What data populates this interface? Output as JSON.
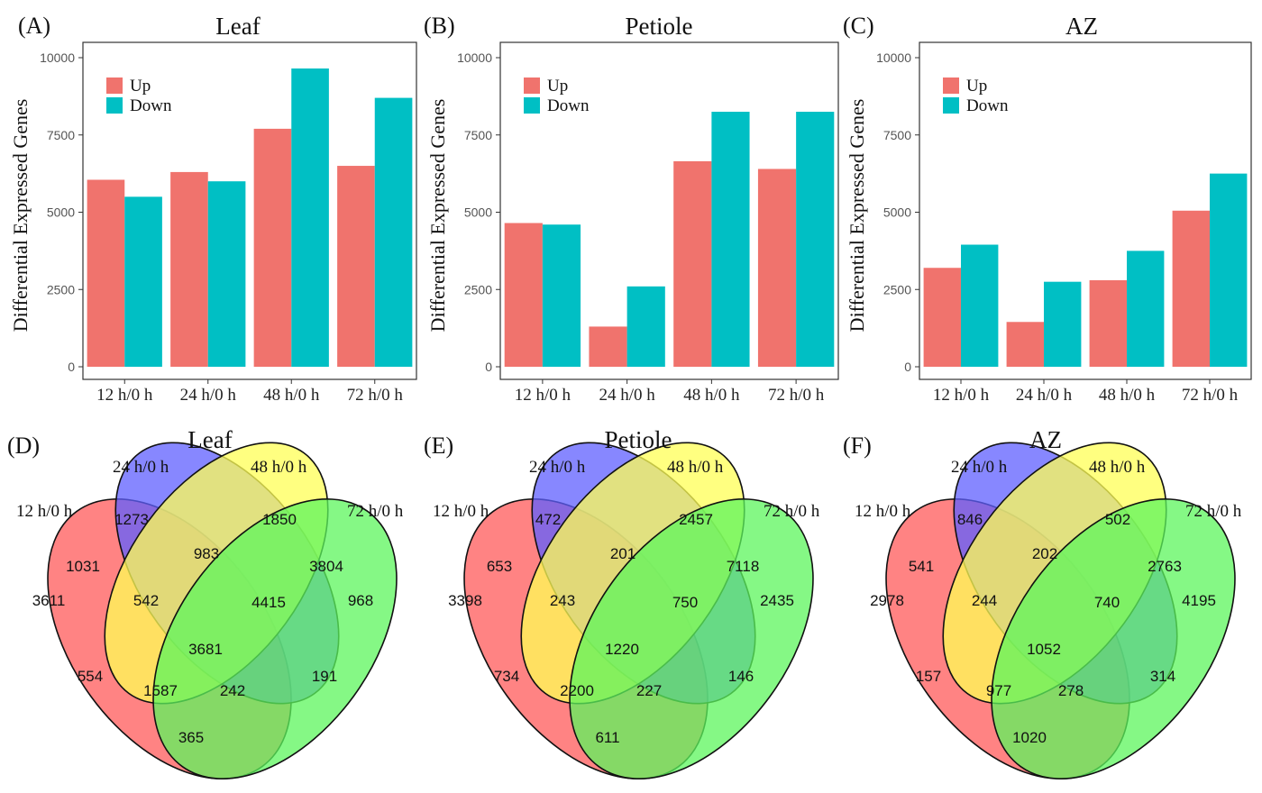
{
  "colors": {
    "up": "#f0736d",
    "down": "#00bfc4",
    "venn": [
      "#ff5a5a",
      "#5f5fff",
      "#ffff55",
      "#5cf55c"
    ]
  },
  "chart_data": [
    {
      "type": "bar",
      "panel_label": "(A)",
      "title": "Leaf",
      "xlabel": "",
      "ylabel": "Differential Expressed Genes",
      "ylim": [
        0,
        10500
      ],
      "yticks": [
        "0",
        "2500",
        "5000",
        "7500",
        "10000"
      ],
      "grid": false,
      "legend_placement": "top-left",
      "categories": [
        "12 h/0 h",
        "24 h/0 h",
        "48 h/0 h",
        "72 h/0 h"
      ],
      "series": [
        {
          "name": "Up",
          "values": [
            6050,
            6300,
            7700,
            6500
          ]
        },
        {
          "name": "Down",
          "values": [
            5500,
            6000,
            9650,
            8700
          ]
        }
      ]
    },
    {
      "type": "bar",
      "panel_label": "(B)",
      "title": "Petiole",
      "xlabel": "",
      "ylabel": "Differential Expressed Genes",
      "ylim": [
        0,
        10500
      ],
      "yticks": [
        "0",
        "2500",
        "5000",
        "7500",
        "10000"
      ],
      "grid": false,
      "legend_placement": "top-left",
      "categories": [
        "12 h/0 h",
        "24 h/0 h",
        "48 h/0 h",
        "72 h/0 h"
      ],
      "series": [
        {
          "name": "Up",
          "values": [
            4650,
            1300,
            6650,
            6400
          ]
        },
        {
          "name": "Down",
          "values": [
            4600,
            2600,
            8250,
            8250
          ]
        }
      ]
    },
    {
      "type": "bar",
      "panel_label": "(C)",
      "title": "AZ",
      "xlabel": "",
      "ylabel": "Differential Expressed Genes",
      "ylim": [
        0,
        10500
      ],
      "yticks": [
        "0",
        "2500",
        "5000",
        "7500",
        "10000"
      ],
      "grid": false,
      "legend_placement": "top-left",
      "categories": [
        "12 h/0 h",
        "24 h/0 h",
        "48 h/0 h",
        "72 h/0 h"
      ],
      "series": [
        {
          "name": "Up",
          "values": [
            3200,
            1450,
            2800,
            5050
          ]
        },
        {
          "name": "Down",
          "values": [
            3950,
            2750,
            3750,
            6250
          ]
        }
      ]
    },
    {
      "type": "venn",
      "panel_label": "(D)",
      "title": "Leaf",
      "sets": [
        "12 h/0 h",
        "24 h/0 h",
        "48 h/0 h",
        "72 h/0 h"
      ],
      "regions": {
        "A": 3611,
        "B": 1273,
        "C": 1850,
        "D": 968,
        "AB": 1031,
        "BC": 983,
        "CD": 3804,
        "ABC": 542,
        "BCD": 4415,
        "ABCD": 3681,
        "AC": 554,
        "BD": 191,
        "ACD": 1587,
        "ABD": 242,
        "AD": 365
      }
    },
    {
      "type": "venn",
      "panel_label": "(E)",
      "title": "Petiole",
      "sets": [
        "12 h/0 h",
        "24 h/0 h",
        "48 h/0 h",
        "72 h/0 h"
      ],
      "regions": {
        "A": 3398,
        "B": 472,
        "C": 2457,
        "D": 2435,
        "AB": 653,
        "BC": 201,
        "CD": 7118,
        "ABC": 243,
        "BCD": 750,
        "ABCD": 1220,
        "AC": 734,
        "BD": 146,
        "ACD": 2200,
        "ABD": 227,
        "AD": 611
      }
    },
    {
      "type": "venn",
      "panel_label": "(F)",
      "title": "AZ",
      "sets": [
        "12 h/0 h",
        "24 h/0 h",
        "48 h/0 h",
        "72 h/0 h"
      ],
      "regions": {
        "A": 2978,
        "B": 846,
        "C": 502,
        "D": 4195,
        "AB": 541,
        "BC": 202,
        "CD": 2763,
        "ABC": 244,
        "BCD": 740,
        "ABCD": 1052,
        "AC": 157,
        "BD": 314,
        "ACD": 977,
        "ABD": 278,
        "AD": 1020
      }
    }
  ]
}
